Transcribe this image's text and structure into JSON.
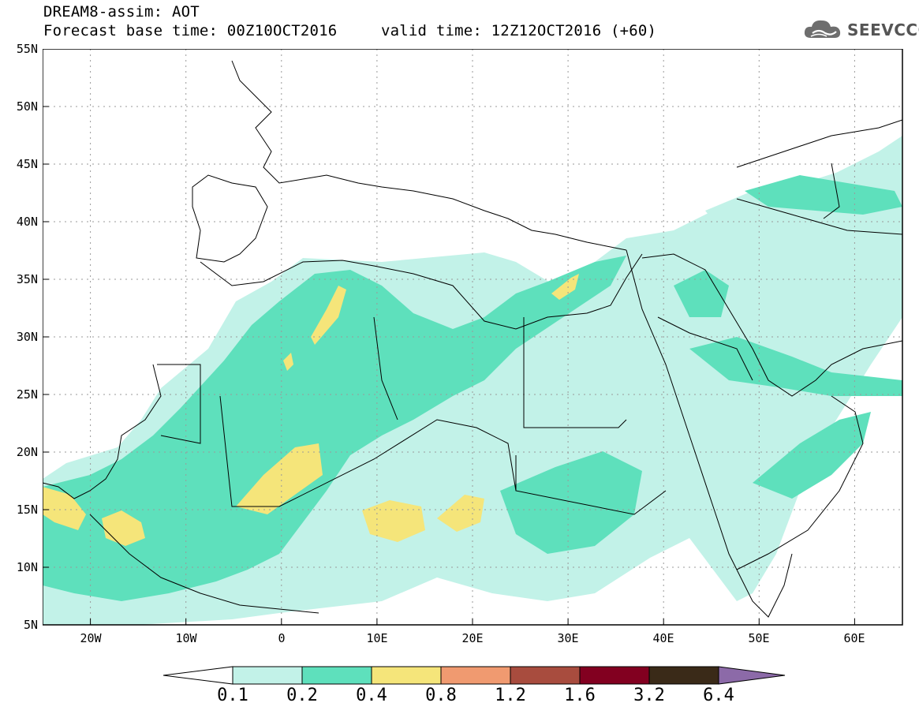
{
  "header": {
    "line1": "DREAM8-assim: AOT",
    "line2": "Forecast base time: 00Z10OCT2016",
    "line2b": "valid time: 12Z12OCT2016 (+60)",
    "logo_text": "SEEVCCC"
  },
  "axes": {
    "lat_labels": [
      "55N",
      "50N",
      "45N",
      "40N",
      "35N",
      "30N",
      "25N",
      "20N",
      "15N",
      "10N",
      "5N"
    ],
    "lon_labels": [
      "20W",
      "10W",
      "0",
      "10E",
      "20E",
      "30E",
      "40E",
      "50E",
      "60E"
    ]
  },
  "map": {
    "variable": "AOT",
    "lon_range": [
      -25,
      65
    ],
    "lat_range": [
      5,
      55
    ]
  },
  "colorbar": {
    "levels": [
      "0.1",
      "0.2",
      "0.4",
      "0.8",
      "1.2",
      "1.6",
      "3.2",
      "6.4"
    ],
    "colors": [
      "#ffffff",
      "#c2f2e8",
      "#5ee0bc",
      "#f5e57a",
      "#f09a70",
      "#a84c3e",
      "#820020",
      "#3a2a18",
      "#8c6aa8"
    ]
  }
}
